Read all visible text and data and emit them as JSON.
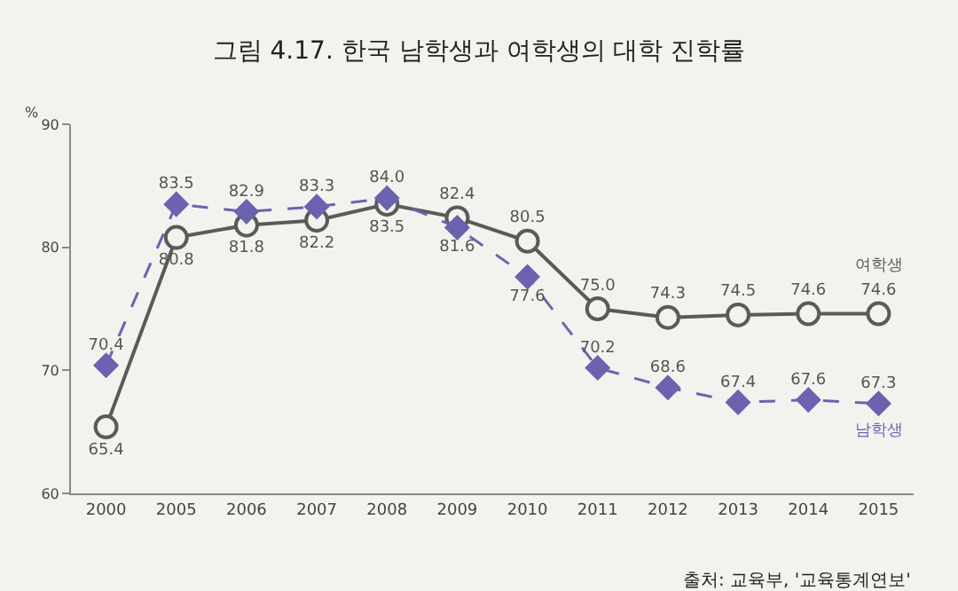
{
  "chart_data": {
    "type": "line",
    "title": "그림 4.17. 한국 남학생과 여학생의 대학 진학률",
    "ylabel": "%",
    "categories": [
      "2000",
      "2005",
      "2006",
      "2007",
      "2008",
      "2009",
      "2010",
      "2011",
      "2012",
      "2013",
      "2014",
      "2015"
    ],
    "series": [
      {
        "name": "여학생",
        "color": "#5a5a5a",
        "marker": "circle",
        "line_style": "solid",
        "values": [
          65.4,
          80.8,
          81.8,
          82.2,
          83.5,
          82.4,
          80.5,
          75.0,
          74.3,
          74.5,
          74.6,
          74.6
        ],
        "value_labels": [
          "65.4",
          "80.8",
          "81.8",
          "82.2",
          "83.5",
          "82.4",
          "80.5",
          "75.0",
          "74.3",
          "74.5",
          "74.6",
          "74.6"
        ]
      },
      {
        "name": "남학생",
        "color": "#6b63b0",
        "marker": "diamond",
        "line_style": "dashed",
        "values": [
          70.4,
          83.5,
          82.9,
          83.3,
          84.0,
          81.6,
          77.6,
          70.2,
          68.6,
          67.4,
          67.6,
          67.3
        ],
        "value_labels": [
          "70.4",
          "83.5",
          "82.9",
          "83.3",
          "84.0",
          "81.6",
          "77.6",
          "70.2",
          "68.6",
          "67.4",
          "67.6",
          "67.3"
        ]
      }
    ],
    "ylim": [
      60,
      90
    ],
    "yticks": [
      60,
      70,
      80,
      90
    ],
    "grid": false,
    "legend": false,
    "annotations": [
      "출처: 교육부, '교육통계연보'"
    ]
  }
}
